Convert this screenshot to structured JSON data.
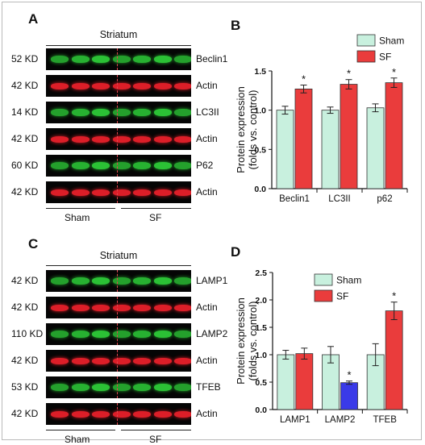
{
  "panels": {
    "A": {
      "letter": "A",
      "region_label": "Striatum",
      "rows": [
        {
          "kd": "52 KD",
          "protein": "Beclin1",
          "color": "green"
        },
        {
          "kd": "42 KD",
          "protein": "Actin",
          "color": "red"
        },
        {
          "kd": "14 KD",
          "protein": "LC3II",
          "color": "green"
        },
        {
          "kd": "42 KD",
          "protein": "Actin",
          "color": "red"
        },
        {
          "kd": "60 KD",
          "protein": "P62",
          "color": "green"
        },
        {
          "kd": "42 KD",
          "protein": "Actin",
          "color": "red"
        }
      ],
      "group_labels": [
        "Sham",
        "SF"
      ]
    },
    "C": {
      "letter": "C",
      "region_label": "Striatum",
      "rows": [
        {
          "kd": "42 KD",
          "protein": "LAMP1",
          "color": "green"
        },
        {
          "kd": "42 KD",
          "protein": "Actin",
          "color": "red"
        },
        {
          "kd": "110 KD",
          "protein": "LAMP2",
          "color": "green"
        },
        {
          "kd": "42 KD",
          "protein": "Actin",
          "color": "red"
        },
        {
          "kd": "53 KD",
          "protein": "TFEB",
          "color": "green"
        },
        {
          "kd": "42 KD",
          "protein": "Actin",
          "color": "red"
        }
      ],
      "group_labels": [
        "Sham",
        "SF"
      ]
    },
    "B": {
      "letter": "B"
    },
    "D": {
      "letter": "D"
    }
  },
  "colors": {
    "sham_bar": "#c8f0de",
    "sf_bar": "#ea3c3c",
    "lamp2_sf_bar": "#3a3ae8",
    "blot_green": "#2fd43a",
    "blot_red": "#e8202a",
    "separator": "#e0454e"
  },
  "chart_data": [
    {
      "panel": "B",
      "type": "bar",
      "categories": [
        "Beclin1",
        "LC3II",
        "p62"
      ],
      "series": [
        {
          "name": "Sham",
          "values": [
            1.0,
            1.0,
            1.03
          ],
          "errors": [
            0.05,
            0.04,
            0.05
          ]
        },
        {
          "name": "SF",
          "values": [
            1.27,
            1.33,
            1.35
          ],
          "errors": [
            0.05,
            0.06,
            0.06
          ]
        }
      ],
      "significance": [
        "*",
        "*",
        "*"
      ],
      "ylabel_lines": [
        "Protein expression",
        "(folds vs. control)"
      ],
      "ylim": [
        0,
        1.5
      ],
      "yticks": [
        "0.0",
        "0.5",
        "1.0",
        "1.5"
      ],
      "legend_position": "top-right",
      "grid": false
    },
    {
      "panel": "D",
      "type": "bar",
      "categories": [
        "LAMP1",
        "LAMP2",
        "TFEB"
      ],
      "series": [
        {
          "name": "Sham",
          "values": [
            1.0,
            1.0,
            1.0
          ],
          "errors": [
            0.08,
            0.15,
            0.2
          ]
        },
        {
          "name": "SF",
          "values": [
            1.02,
            0.49,
            1.8
          ],
          "errors": [
            0.1,
            0.03,
            0.16
          ]
        }
      ],
      "significance": [
        "",
        "*",
        "*"
      ],
      "ylabel_lines": [
        "Protein expression",
        "(folds vs. control)"
      ],
      "ylim": [
        0,
        2.5
      ],
      "yticks": [
        "0.0",
        "0.5",
        "1.0",
        "1.5",
        "2.0",
        "2.5"
      ],
      "legend_position": "top-left",
      "grid": false
    }
  ]
}
